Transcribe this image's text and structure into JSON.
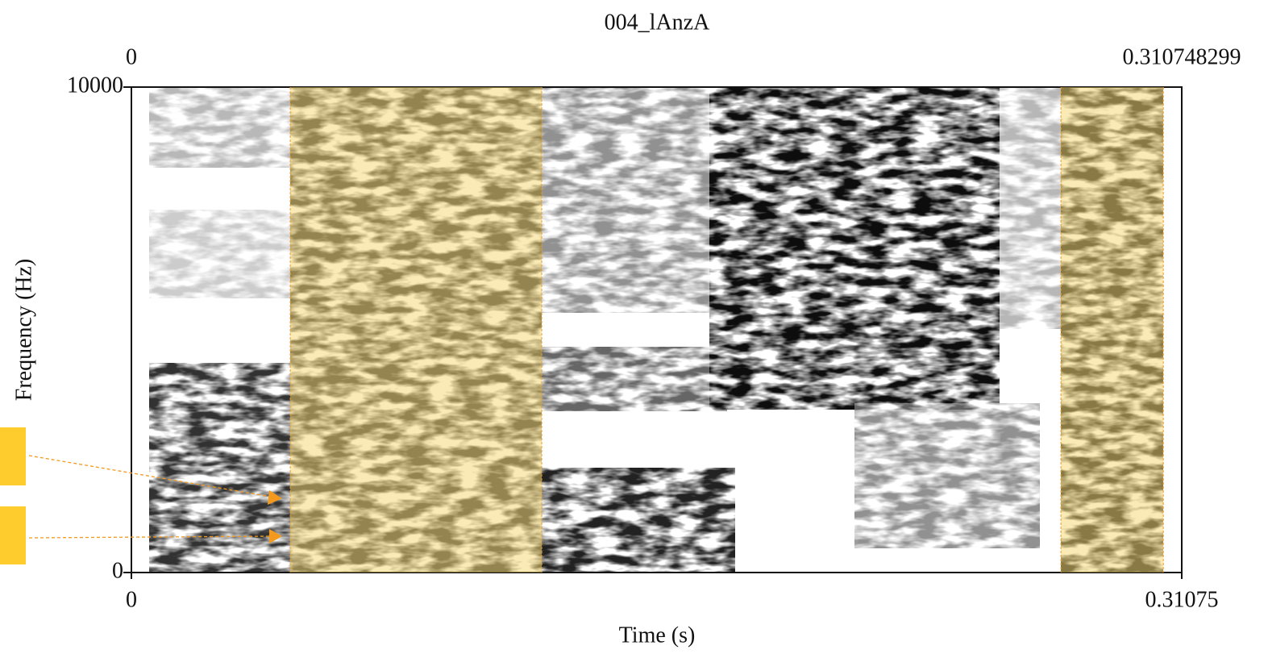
{
  "chart_data": {
    "type": "spectrogram",
    "title": "004_lAnzA",
    "x_label": "Time (s)",
    "y_label": "Frequency (Hz)",
    "top_labels": [
      0,
      0.310748299
    ],
    "xlim": [
      0,
      0.31075
    ],
    "xticks": [
      0,
      0.31075
    ],
    "ylim": [
      0,
      10000
    ],
    "yticks": [
      0,
      10000
    ],
    "highlights": [
      {
        "start": 0.047,
        "end": 0.1214
      },
      {
        "start": 0.275,
        "end": 0.3053
      }
    ],
    "highlight_color": "#f5d05a"
  }
}
